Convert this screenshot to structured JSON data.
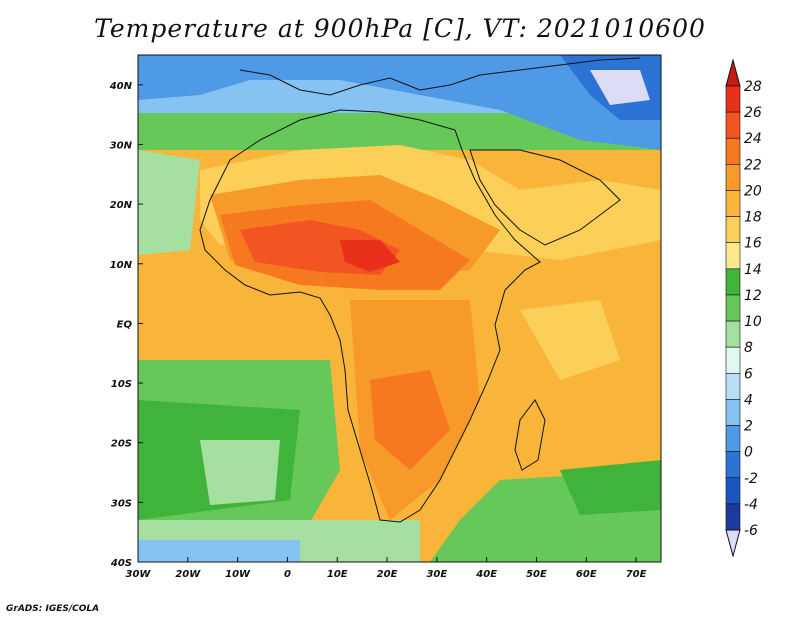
{
  "title": "Temperature at 900hPa [C], VT: 2021010600",
  "footer": "GrADS: IGES/COLA",
  "map": {
    "lon_range": [
      -30,
      75
    ],
    "lat_range": [
      -40,
      45
    ],
    "lon_ticks": [
      "30W",
      "20W",
      "10W",
      "0",
      "10E",
      "20E",
      "30E",
      "40E",
      "50E",
      "60E",
      "70E"
    ],
    "lat_ticks": [
      "40N",
      "30N",
      "20N",
      "10N",
      "EQ",
      "10S",
      "20S",
      "30S",
      "40S"
    ],
    "lon_tick_values": [
      -30,
      -20,
      -10,
      0,
      10,
      20,
      30,
      40,
      50,
      60,
      70
    ],
    "lat_tick_values": [
      40,
      30,
      20,
      10,
      0,
      -10,
      -20,
      -30,
      -40
    ],
    "variable": "temperature",
    "unit": "C"
  },
  "colorbar": {
    "labels": [
      "28",
      "26",
      "24",
      "22",
      "20",
      "18",
      "16",
      "14",
      "12",
      "10",
      "8",
      "6",
      "4",
      "2",
      "0",
      "-2",
      "-4",
      "-6"
    ],
    "colors": [
      "#e8301a",
      "#f25522",
      "#f6781f",
      "#f79a29",
      "#f9b53a",
      "#fbcf58",
      "#fde88e",
      "#40b33a",
      "#67c85a",
      "#a6e0a0",
      "#e0f8f0",
      "#b8def8",
      "#86c2f2",
      "#4f9ae6",
      "#2d73d6",
      "#1d55c0",
      "#1a3a9e",
      "#131a72"
    ],
    "top_arrow_color": "#c81a10",
    "bottom_arrow_color": "#dcdcf5"
  }
}
